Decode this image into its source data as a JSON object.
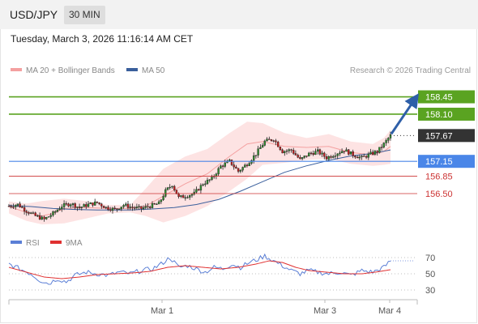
{
  "header": {
    "symbol": "USD/JPY",
    "timeframe": "30 MIN",
    "timestamp": "Tuesday, March 3, 2026 11:16:14 AM CET"
  },
  "legend": {
    "ma20_label": "MA 20 + Bollinger Bands",
    "ma50_label": "MA 50",
    "ma20_color": "#f4a0a0",
    "ma50_color": "#3a5f9c",
    "rsi_label": "RSI",
    "rsi9ma_label": "9MA",
    "rsi_color": "#5b7fd6",
    "rsi9ma_color": "#e03030"
  },
  "copyright": "Research © 2026 Trading Central",
  "chart_data": [
    {
      "type": "candlestick",
      "ylim": [
        155.75,
        158.85
      ],
      "x_labels": [
        "Mar 1",
        "Mar 3",
        "Mar 4"
      ],
      "levels": [
        {
          "value": 158.45,
          "label": "158.45",
          "kind": "target",
          "color": "#5aa321"
        },
        {
          "value": 158.1,
          "label": "158.10",
          "kind": "target",
          "color": "#5aa321"
        },
        {
          "value": 157.67,
          "label": "157.67",
          "kind": "last-price",
          "color": "#333333"
        },
        {
          "value": 157.15,
          "label": "157.15",
          "kind": "pivot",
          "color": "#4a86e8"
        },
        {
          "value": 156.85,
          "label": "156.85",
          "kind": "support",
          "color": "#cc3333"
        },
        {
          "value": 156.5,
          "label": "156.50",
          "kind": "support",
          "color": "#cc3333"
        }
      ],
      "series": [
        {
          "name": "MA 20 + Bollinger Bands",
          "color": "#f4a0a0"
        },
        {
          "name": "MA 50",
          "color": "#3a5f9c"
        }
      ],
      "ma50": [
        [
          0,
          156.26
        ],
        [
          10,
          156.24
        ],
        [
          20,
          156.2
        ],
        [
          30,
          156.18
        ],
        [
          40,
          156.17
        ],
        [
          55,
          156.17
        ],
        [
          65,
          156.19
        ],
        [
          75,
          156.22
        ],
        [
          85,
          156.28
        ],
        [
          95,
          156.38
        ],
        [
          105,
          156.55
        ],
        [
          115,
          156.74
        ],
        [
          125,
          156.93
        ],
        [
          135,
          157.06
        ],
        [
          145,
          157.17
        ],
        [
          155,
          157.26
        ],
        [
          165,
          157.31
        ],
        [
          173,
          157.38
        ]
      ],
      "ma20": [
        [
          0,
          156.24
        ],
        [
          8,
          156.12
        ],
        [
          15,
          156.05
        ],
        [
          20,
          156.1
        ],
        [
          25,
          156.2
        ],
        [
          35,
          156.22
        ],
        [
          45,
          156.2
        ],
        [
          55,
          156.2
        ],
        [
          62,
          156.25
        ],
        [
          70,
          156.45
        ],
        [
          80,
          156.7
        ],
        [
          90,
          156.9
        ],
        [
          100,
          157.25
        ],
        [
          108,
          157.5
        ],
        [
          115,
          157.55
        ],
        [
          125,
          157.45
        ],
        [
          135,
          157.43
        ],
        [
          145,
          157.45
        ],
        [
          155,
          157.33
        ],
        [
          165,
          157.28
        ],
        [
          170,
          157.35
        ],
        [
          173,
          157.45
        ]
      ],
      "bollinger_upper": [
        [
          0,
          156.34
        ],
        [
          8,
          156.3
        ],
        [
          15,
          156.35
        ],
        [
          25,
          156.4
        ],
        [
          35,
          156.35
        ],
        [
          45,
          156.27
        ],
        [
          55,
          156.27
        ],
        [
          62,
          156.6
        ],
        [
          70,
          157.0
        ],
        [
          80,
          157.25
        ],
        [
          90,
          157.4
        ],
        [
          100,
          157.72
        ],
        [
          108,
          157.95
        ],
        [
          115,
          157.92
        ],
        [
          125,
          157.72
        ],
        [
          135,
          157.62
        ],
        [
          145,
          157.7
        ],
        [
          155,
          157.55
        ],
        [
          165,
          157.5
        ],
        [
          170,
          157.62
        ],
        [
          173,
          157.78
        ]
      ],
      "bollinger_lower": [
        [
          0,
          156.1
        ],
        [
          8,
          155.95
        ],
        [
          15,
          155.88
        ],
        [
          25,
          155.9
        ],
        [
          35,
          156.0
        ],
        [
          45,
          156.1
        ],
        [
          55,
          156.12
        ],
        [
          62,
          156.05
        ],
        [
          70,
          155.92
        ],
        [
          80,
          156.05
        ],
        [
          90,
          156.25
        ],
        [
          100,
          156.55
        ],
        [
          108,
          156.8
        ],
        [
          115,
          157.08
        ],
        [
          125,
          157.12
        ],
        [
          135,
          157.18
        ],
        [
          145,
          157.2
        ],
        [
          155,
          157.1
        ],
        [
          165,
          157.06
        ],
        [
          170,
          157.08
        ],
        [
          173,
          157.1
        ]
      ],
      "closes": [
        [
          0,
          156.25
        ],
        [
          4,
          156.28
        ],
        [
          8,
          156.15
        ],
        [
          12,
          156.05
        ],
        [
          16,
          155.98
        ],
        [
          20,
          156.1
        ],
        [
          24,
          156.25
        ],
        [
          28,
          156.3
        ],
        [
          32,
          156.22
        ],
        [
          36,
          156.28
        ],
        [
          40,
          156.32
        ],
        [
          44,
          156.22
        ],
        [
          48,
          156.18
        ],
        [
          52,
          156.27
        ],
        [
          56,
          156.22
        ],
        [
          60,
          156.2
        ],
        [
          64,
          156.25
        ],
        [
          68,
          156.3
        ],
        [
          71,
          156.55
        ],
        [
          74,
          156.68
        ],
        [
          77,
          156.42
        ],
        [
          80,
          156.45
        ],
        [
          84,
          156.5
        ],
        [
          88,
          156.7
        ],
        [
          92,
          156.8
        ],
        [
          96,
          157.05
        ],
        [
          100,
          157.15
        ],
        [
          104,
          156.95
        ],
        [
          108,
          157.1
        ],
        [
          112,
          157.3
        ],
        [
          116,
          157.55
        ],
        [
          120,
          157.6
        ],
        [
          124,
          157.35
        ],
        [
          128,
          157.38
        ],
        [
          132,
          157.18
        ],
        [
          136,
          157.3
        ],
        [
          140,
          157.35
        ],
        [
          144,
          157.22
        ],
        [
          148,
          157.3
        ],
        [
          152,
          157.38
        ],
        [
          156,
          157.28
        ],
        [
          160,
          157.22
        ],
        [
          164,
          157.3
        ],
        [
          167,
          157.35
        ],
        [
          170,
          157.5
        ],
        [
          173,
          157.67
        ]
      ],
      "lows": [
        [
          16,
          155.9
        ],
        [
          100,
          156.7
        ],
        [
          132,
          157.12
        ],
        [
          156,
          157.15
        ]
      ],
      "highs": [
        [
          74,
          156.8
        ],
        [
          116,
          157.7
        ],
        [
          173,
          157.72
        ]
      ]
    },
    {
      "type": "line",
      "title": "RSI",
      "ylim": [
        20,
        80
      ],
      "y_ticks": [
        70,
        50,
        30
      ],
      "series": [
        {
          "name": "RSI",
          "color": "#5b7fd6",
          "values": [
            [
              0,
              62
            ],
            [
              5,
              56
            ],
            [
              10,
              50
            ],
            [
              14,
              42
            ],
            [
              18,
              38
            ],
            [
              22,
              44
            ],
            [
              26,
              40
            ],
            [
              30,
              48
            ],
            [
              35,
              52
            ],
            [
              40,
              50
            ],
            [
              45,
              48
            ],
            [
              50,
              52
            ],
            [
              55,
              50
            ],
            [
              60,
              54
            ],
            [
              65,
              56
            ],
            [
              69,
              62
            ],
            [
              73,
              70
            ],
            [
              77,
              58
            ],
            [
              81,
              60
            ],
            [
              85,
              56
            ],
            [
              89,
              52
            ],
            [
              93,
              58
            ],
            [
              97,
              56
            ],
            [
              101,
              62
            ],
            [
              105,
              58
            ],
            [
              109,
              64
            ],
            [
              113,
              68
            ],
            [
              116,
              72
            ],
            [
              120,
              66
            ],
            [
              124,
              60
            ],
            [
              128,
              54
            ],
            [
              132,
              50
            ],
            [
              136,
              54
            ],
            [
              140,
              52
            ],
            [
              145,
              50
            ],
            [
              150,
              52
            ],
            [
              155,
              48
            ],
            [
              160,
              54
            ],
            [
              165,
              52
            ],
            [
              170,
              58
            ],
            [
              173,
              66
            ]
          ]
        },
        {
          "name": "9MA",
          "color": "#e03030",
          "values": [
            [
              0,
              58
            ],
            [
              8,
              52
            ],
            [
              16,
              46
            ],
            [
              24,
              44
            ],
            [
              32,
              46
            ],
            [
              40,
              49
            ],
            [
              48,
              50
            ],
            [
              56,
              51
            ],
            [
              64,
              53
            ],
            [
              72,
              58
            ],
            [
              80,
              60
            ],
            [
              88,
              58
            ],
            [
              96,
              56
            ],
            [
              104,
              58
            ],
            [
              112,
              62
            ],
            [
              118,
              66
            ],
            [
              124,
              64
            ],
            [
              130,
              58
            ],
            [
              136,
              54
            ],
            [
              144,
              52
            ],
            [
              152,
              50
            ],
            [
              160,
              50
            ],
            [
              166,
              52
            ],
            [
              173,
              55
            ]
          ]
        }
      ]
    }
  ]
}
